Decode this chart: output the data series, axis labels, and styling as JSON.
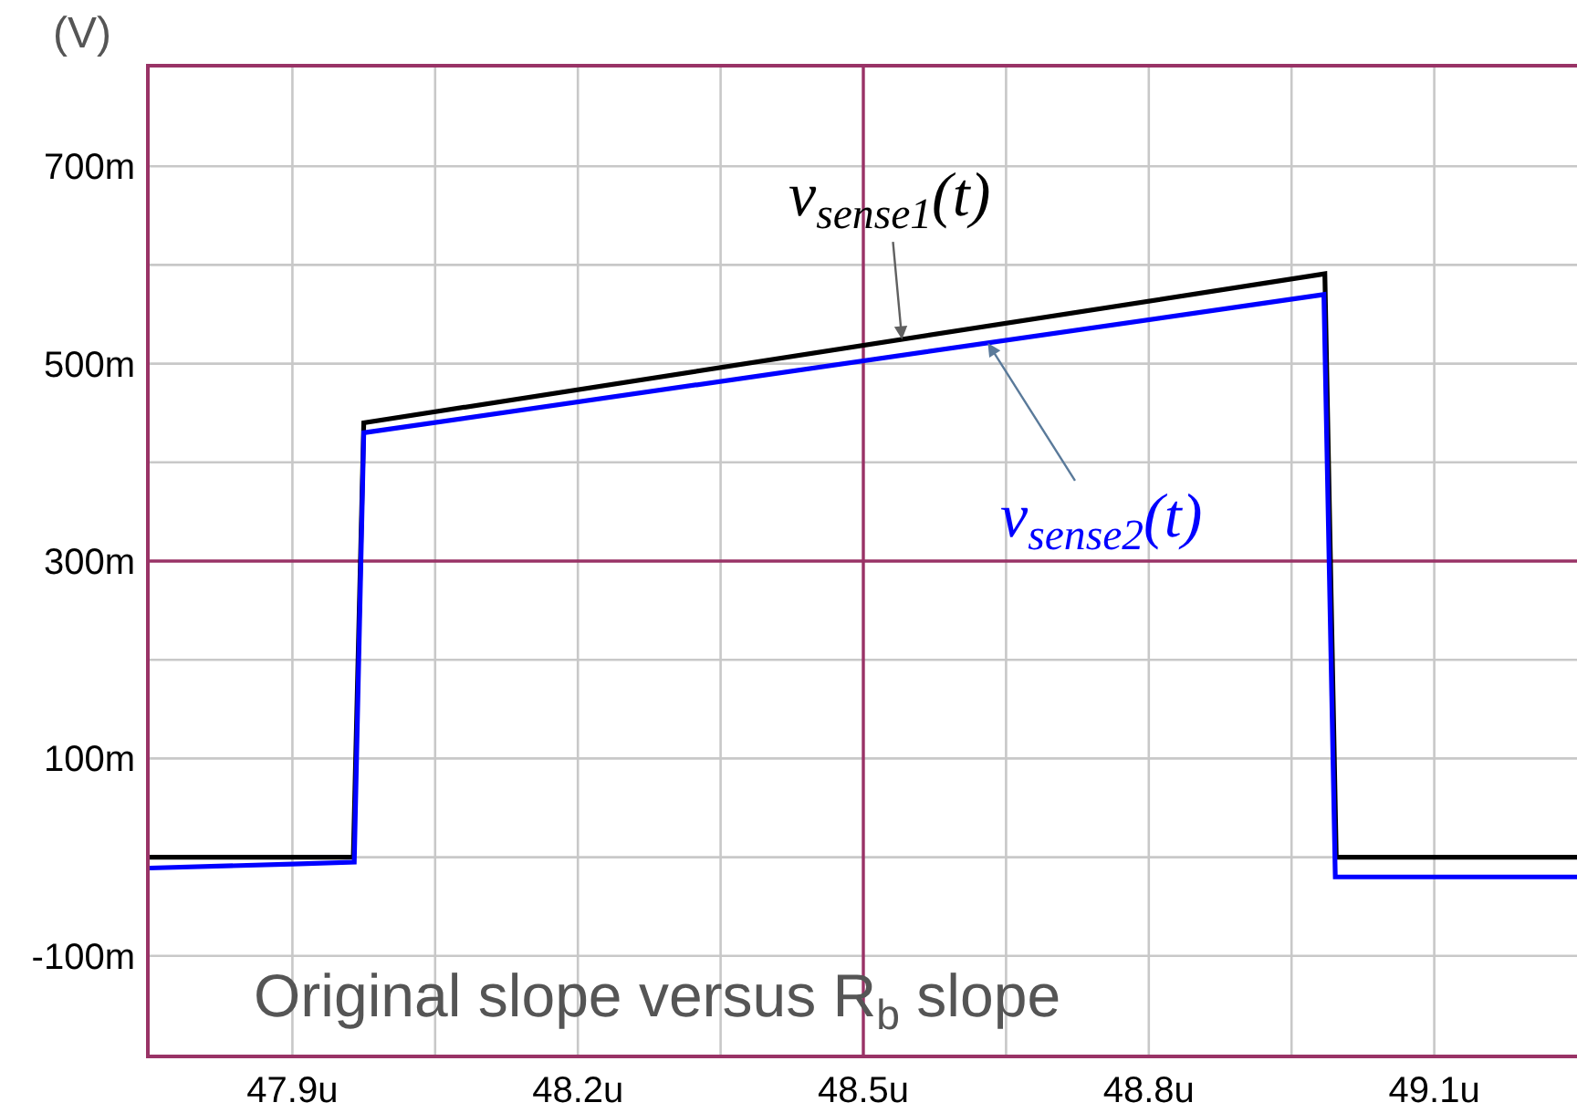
{
  "chart_data": {
    "type": "line",
    "ylabel": "(V)",
    "annotations": [
      "Original slope versus R$_{b}$ slope"
    ],
    "xlim": [
      47.75,
      49.25
    ],
    "xticks": [
      {
        "value": 47.9,
        "label": "47.9u"
      },
      {
        "value": 48.05,
        "label": null
      },
      {
        "value": 48.2,
        "label": "48.2u"
      },
      {
        "value": 48.35,
        "label": null
      },
      {
        "value": 48.5,
        "label": "48.5u"
      },
      {
        "value": 48.65,
        "label": null
      },
      {
        "value": 48.8,
        "label": "48.8u"
      },
      {
        "value": 48.95,
        "label": null
      },
      {
        "value": 49.1,
        "label": "49.1u"
      }
    ],
    "ylim": [
      -200,
      800
    ],
    "yticks": [
      {
        "value": -100,
        "label": "-100m"
      },
      {
        "value": 0,
        "label": null
      },
      {
        "value": 100,
        "label": "100m"
      },
      {
        "value": 200,
        "label": null
      },
      {
        "value": 300,
        "label": "300m"
      },
      {
        "value": 400,
        "label": null
      },
      {
        "value": 500,
        "label": "500m"
      },
      {
        "value": 600,
        "label": null
      },
      {
        "value": 700,
        "label": "700m"
      }
    ],
    "grid": true,
    "legend": false,
    "marker": "none",
    "line_style": "solid",
    "series": [
      {
        "name": "v$_{sense1}$(t)",
        "color": "#000000",
        "x": [
          47.75,
          47.964,
          47.975,
          48.985,
          48.997,
          49.25
        ],
        "values": [
          0,
          0,
          440,
          591,
          0,
          0
        ]
      },
      {
        "name": "v$_{sense2}$(t)",
        "color": "#0000ff",
        "x": [
          47.75,
          47.9,
          47.965,
          47.975,
          48.984,
          48.996,
          49.25
        ],
        "values": [
          -11,
          -7,
          -5,
          430,
          570,
          -20,
          -20
        ]
      }
    ]
  }
}
